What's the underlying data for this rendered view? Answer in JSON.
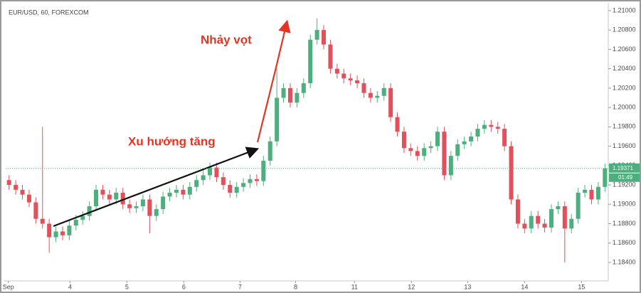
{
  "chart_data": {
    "type": "candlestick",
    "title": "EUR/USD, 60, FOREXCOM",
    "annotations": [
      "Xu hướng tăng",
      "Nhảy vọt"
    ],
    "up_color": "#4caf7d",
    "down_color": "#e2505c",
    "grid": false,
    "xlim": [
      0,
      90
    ],
    "xticks": [
      {
        "value": 0.4,
        "label": "Sep"
      },
      {
        "value": 9.6,
        "label": "4"
      },
      {
        "value": 18.1,
        "label": "5"
      },
      {
        "value": 26.6,
        "label": "6"
      },
      {
        "value": 35.0,
        "label": "7"
      },
      {
        "value": 43.3,
        "label": "8"
      },
      {
        "value": 52.1,
        "label": "11"
      },
      {
        "value": 60.6,
        "label": "12"
      },
      {
        "value": 69.0,
        "label": "13"
      },
      {
        "value": 77.5,
        "label": "14"
      },
      {
        "value": 86.0,
        "label": "15"
      }
    ],
    "ylim": [
      1.18209,
      1.21073
    ],
    "yticks": [
      {
        "value": 1.184,
        "label": "1.18400"
      },
      {
        "value": 1.186,
        "label": "1.18600"
      },
      {
        "value": 1.188,
        "label": "1.18800"
      },
      {
        "value": 1.19,
        "label": "1.19000"
      },
      {
        "value": 1.192,
        "label": "1.19200"
      },
      {
        "value": 1.194,
        "label": "1.19400"
      },
      {
        "value": 1.196,
        "label": "1.19600"
      },
      {
        "value": 1.198,
        "label": "1.19800"
      },
      {
        "value": 1.2,
        "label": "1.20000"
      },
      {
        "value": 1.202,
        "label": "1.20200"
      },
      {
        "value": 1.204,
        "label": "1.20400"
      },
      {
        "value": 1.206,
        "label": "1.20600"
      },
      {
        "value": 1.208,
        "label": "1.20800"
      },
      {
        "value": 1.21,
        "label": "1.21000"
      }
    ],
    "last_price": 1.19371,
    "countdown": "01:49",
    "open": [
      1.1925,
      1.192,
      1.1915,
      1.191,
      1.1902,
      1.1885,
      1.188,
      1.1866,
      1.1872,
      1.1868,
      1.1878,
      1.1884,
      1.1888,
      1.1898,
      1.1915,
      1.191,
      1.1905,
      1.1912,
      1.19,
      1.1896,
      1.1898,
      1.1905,
      1.1888,
      1.1895,
      1.1908,
      1.1912,
      1.1915,
      1.191,
      1.1918,
      1.1925,
      1.193,
      1.1938,
      1.1928,
      1.192,
      1.1912,
      1.1918,
      1.1922,
      1.1926,
      1.1924,
      1.1945,
      1.1965,
      1.201,
      1.202,
      1.2005,
      1.2015,
      1.2025,
      1.207,
      1.208,
      1.2065,
      1.204,
      1.2035,
      1.203,
      1.2028,
      1.2025,
      1.2015,
      1.201,
      1.2012,
      1.202,
      1.199,
      1.1975,
      1.1958,
      1.1955,
      1.195,
      1.1958,
      1.196,
      1.1975,
      1.193,
      1.195,
      1.1962,
      1.1965,
      1.197,
      1.1978,
      1.1982,
      1.198,
      1.1978,
      1.196,
      1.1905,
      1.188,
      1.1875,
      1.1888,
      1.188,
      1.1876,
      1.1895,
      1.1898,
      1.1875,
      1.1885,
      1.1912,
      1.1915,
      1.1905,
      1.1918
    ],
    "high": [
      1.193,
      1.1925,
      1.192,
      1.1915,
      1.1907,
      1.198,
      1.1885,
      1.1877,
      1.1877,
      1.1883,
      1.1889,
      1.1893,
      1.1903,
      1.192,
      1.192,
      1.1915,
      1.1917,
      1.1917,
      1.1905,
      1.1903,
      1.191,
      1.191,
      1.19,
      1.1913,
      1.1917,
      1.192,
      1.192,
      1.1923,
      1.193,
      1.1935,
      1.1943,
      1.1943,
      1.1933,
      1.1925,
      1.1923,
      1.1927,
      1.1931,
      1.1931,
      1.195,
      1.197,
      1.204,
      1.2025,
      1.2025,
      1.202,
      1.203,
      1.2075,
      1.2092,
      1.2085,
      1.207,
      1.2045,
      1.204,
      1.2035,
      1.2033,
      1.203,
      1.202,
      1.2017,
      1.2025,
      1.2025,
      1.1995,
      1.198,
      1.1963,
      1.196,
      1.1963,
      1.1965,
      1.198,
      1.198,
      1.1955,
      1.1967,
      1.197,
      1.1975,
      1.1983,
      1.1987,
      1.1987,
      1.1985,
      1.1983,
      1.1965,
      1.191,
      1.1885,
      1.1893,
      1.1893,
      1.1885,
      1.19,
      1.1903,
      1.1903,
      1.189,
      1.1917,
      1.192,
      1.192,
      1.1923,
      1.1942
    ],
    "low": [
      1.1915,
      1.191,
      1.1905,
      1.1897,
      1.188,
      1.1875,
      1.185,
      1.1861,
      1.1863,
      1.1863,
      1.1873,
      1.1879,
      1.1883,
      1.1893,
      1.1905,
      1.19,
      1.19,
      1.1895,
      1.1891,
      1.1891,
      1.1893,
      1.187,
      1.1883,
      1.189,
      1.1903,
      1.1907,
      1.1905,
      1.1905,
      1.1913,
      1.192,
      1.1925,
      1.1923,
      1.1915,
      1.1907,
      1.1907,
      1.1913,
      1.1917,
      1.1919,
      1.1919,
      1.194,
      1.196,
      1.2005,
      1.2,
      1.2,
      1.201,
      1.202,
      1.2065,
      1.206,
      1.2035,
      1.203,
      1.2025,
      1.2023,
      1.202,
      1.201,
      1.2005,
      1.2005,
      1.2007,
      1.1985,
      1.197,
      1.1953,
      1.195,
      1.1945,
      1.1945,
      1.1953,
      1.1955,
      1.1925,
      1.1925,
      1.1945,
      1.1957,
      1.196,
      1.1965,
      1.1973,
      1.1975,
      1.1973,
      1.1955,
      1.19,
      1.1875,
      1.187,
      1.187,
      1.1875,
      1.1871,
      1.1871,
      1.189,
      1.184,
      1.187,
      1.188,
      1.1907,
      1.19,
      1.19,
      1.1913
    ],
    "close": [
      1.192,
      1.1915,
      1.191,
      1.1902,
      1.1885,
      1.188,
      1.1866,
      1.1872,
      1.1868,
      1.1878,
      1.1884,
      1.1888,
      1.1898,
      1.1915,
      1.191,
      1.1905,
      1.1912,
      1.19,
      1.1896,
      1.1898,
      1.1905,
      1.1888,
      1.1895,
      1.1908,
      1.1912,
      1.1915,
      1.191,
      1.1918,
      1.1925,
      1.193,
      1.1938,
      1.1928,
      1.192,
      1.1912,
      1.1918,
      1.1922,
      1.1926,
      1.1924,
      1.1945,
      1.1965,
      1.201,
      1.202,
      1.2005,
      1.2015,
      1.2025,
      1.207,
      1.208,
      1.2065,
      1.204,
      1.2035,
      1.203,
      1.2028,
      1.2025,
      1.2015,
      1.201,
      1.2012,
      1.202,
      1.199,
      1.1975,
      1.1958,
      1.1955,
      1.195,
      1.1958,
      1.196,
      1.1975,
      1.193,
      1.195,
      1.1962,
      1.1965,
      1.197,
      1.1978,
      1.1982,
      1.198,
      1.1978,
      1.196,
      1.1905,
      1.188,
      1.1875,
      1.1888,
      1.188,
      1.1876,
      1.1895,
      1.1898,
      1.1875,
      1.1885,
      1.1912,
      1.1915,
      1.1905,
      1.1918,
      1.19371
    ]
  }
}
